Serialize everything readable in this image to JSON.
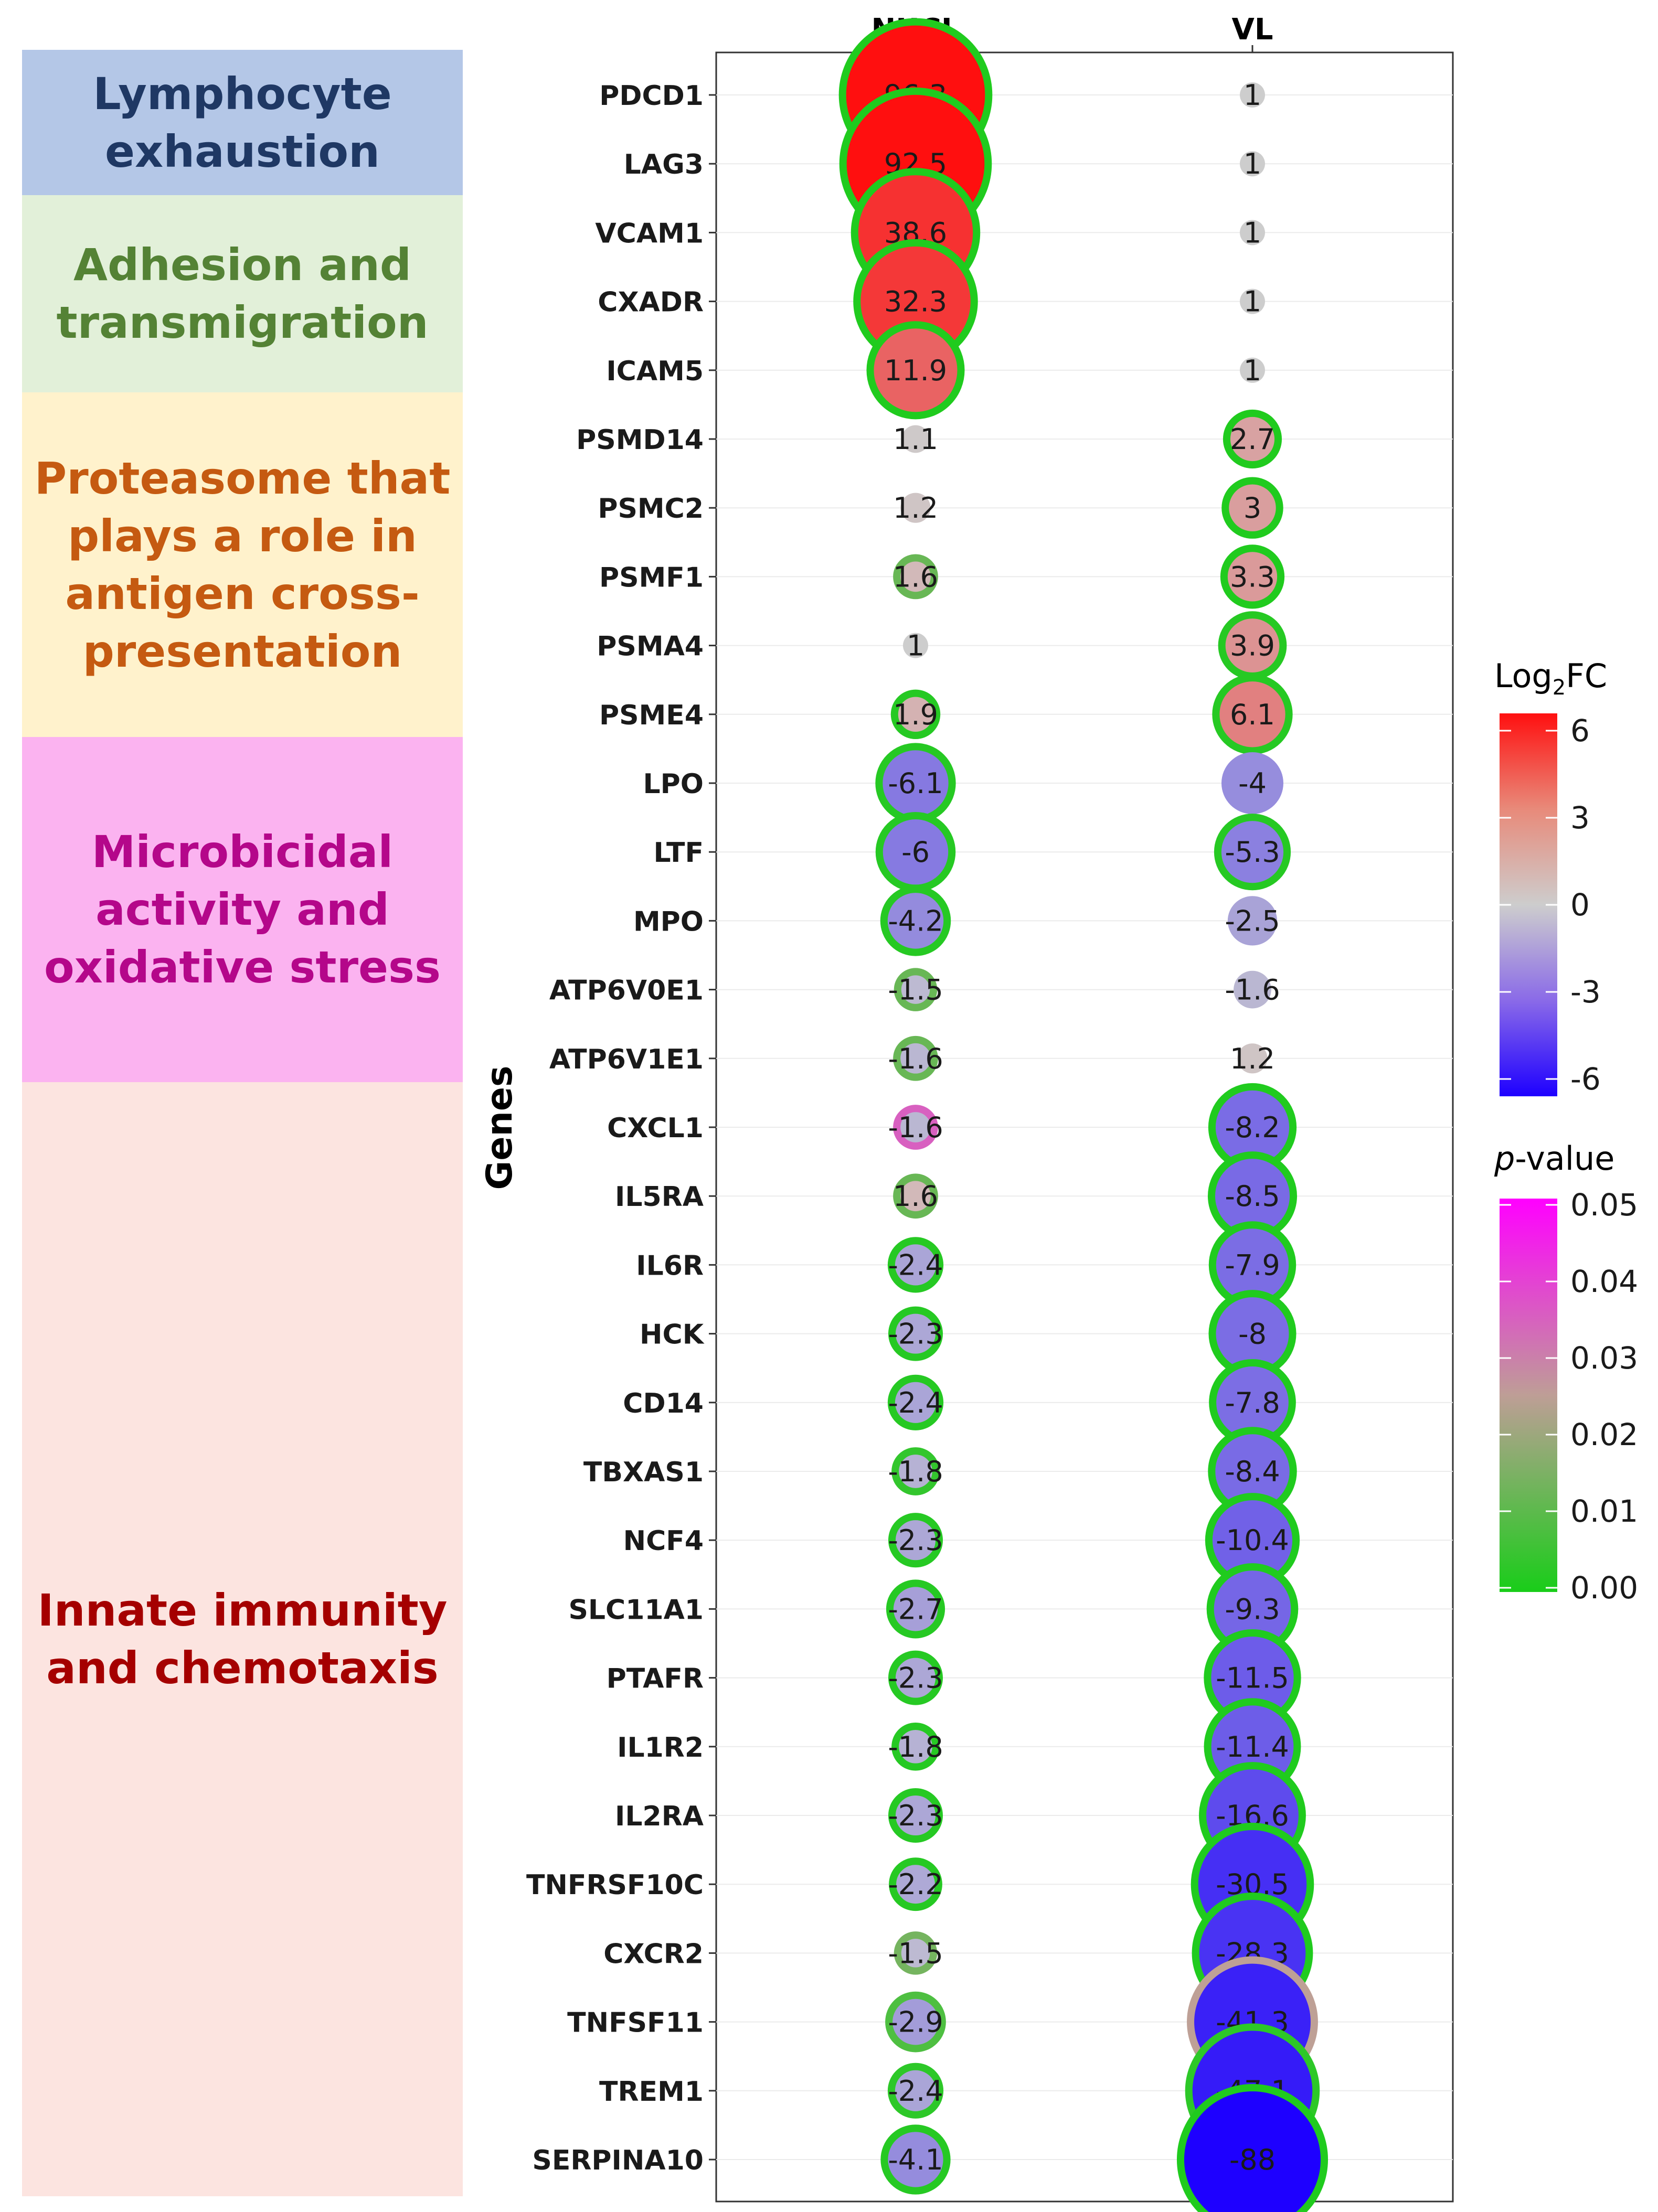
{
  "categories": [
    {
      "label": "Lymphocyte exhaustion",
      "bg": "#b4c7e7",
      "color": "#1f3864"
    },
    {
      "label": "Adhesion and transmigration",
      "bg": "#e2f0d9",
      "color": "#548235"
    },
    {
      "label": "Proteasome that plays a role in antigen cross-presentation",
      "bg": "#fff2cc",
      "color": "#c55a11"
    },
    {
      "label": "Microbicidal activity and oxidative stress",
      "bg": "#fbb3f0",
      "color": "#b4078a"
    },
    {
      "label": "Innate immunity and chemotaxis",
      "bg": "#fce4e0",
      "color": "#a50000"
    }
  ],
  "chart_data": {
    "type": "bubble",
    "ylabel": "Genes",
    "columns": [
      "NUCL",
      "VL"
    ],
    "genes": [
      "PDCD1",
      "LAG3",
      "VCAM1",
      "CXADR",
      "ICAM5",
      "PSMD14",
      "PSMC2",
      "PSMF1",
      "PSMA4",
      "PSME4",
      "LPO",
      "LTF",
      "MPO",
      "ATP6V0E1",
      "ATP6V1E1",
      "CXCL1",
      "IL5RA",
      "IL6R",
      "HCK",
      "CD14",
      "TBXAS1",
      "NCF4",
      "SLC11A1",
      "PTAFR",
      "IL1R2",
      "IL2RA",
      "TNFRSF10C",
      "CXCR2",
      "TNFSF11",
      "TREM1",
      "SERPINA10"
    ],
    "fold_change": {
      "NUCL": [
        "96.3",
        "92.5",
        "38.6",
        "32.3",
        "11.9",
        "1.1",
        "1.2",
        "1.6",
        "1",
        "1.9",
        "-6.1",
        "-6",
        "-4.2",
        "-1.5",
        "-1.6",
        "-1.6",
        "1.6",
        "-2.4",
        "-2.3",
        "-2.4",
        "-1.8",
        "-2.3",
        "-2.7",
        "-2.3",
        "-1.8",
        "-2.3",
        "-2.2",
        "-1.5",
        "-2.9",
        "-2.4",
        "-4.1"
      ],
      "VL": [
        "1",
        "1",
        "1",
        "1",
        "1",
        "2.7",
        "3",
        "3.3",
        "3.9",
        "6.1",
        "-4",
        "-5.3",
        "-2.5",
        "-1.6",
        "1.2",
        "-8.2",
        "-8.5",
        "-7.9",
        "-8",
        "-7.8",
        "-8.4",
        "-10.4",
        "-9.3",
        "-11.5",
        "-11.4",
        "-16.6",
        "-30.5",
        "-28.3",
        "-41.3",
        "-47.1",
        "-88"
      ]
    },
    "p_value": {
      "NUCL": [
        0.001,
        0.001,
        0.001,
        0.001,
        0.001,
        null,
        null,
        0.012,
        null,
        0.002,
        0.002,
        0.002,
        0.002,
        0.012,
        0.012,
        0.035,
        0.012,
        0.002,
        0.002,
        0.002,
        0.004,
        0.002,
        0.002,
        0.002,
        0.002,
        0.002,
        0.002,
        0.014,
        0.008,
        0.003,
        0.002
      ],
      "VL": [
        null,
        null,
        null,
        null,
        null,
        0.001,
        0.001,
        0.001,
        0.002,
        0.002,
        null,
        0.002,
        null,
        null,
        null,
        0.001,
        0.001,
        0.001,
        0.001,
        0.001,
        0.001,
        0.001,
        0.001,
        0.001,
        0.001,
        0.001,
        0.001,
        0.001,
        0.025,
        0.003,
        0.001
      ]
    },
    "legend_fc": {
      "title_main": "Log",
      "title_sub": "2",
      "title_end": "FC",
      "ticks": [
        "6",
        "3",
        "0",
        "-3",
        "-6"
      ],
      "range": [
        -6,
        6
      ]
    },
    "legend_p": {
      "title_italic": "p",
      "title_rest": "-value",
      "ticks": [
        "0.05",
        "0.04",
        "0.03",
        "0.02",
        "0.01",
        "0.00"
      ],
      "range": [
        0,
        0.05
      ]
    }
  }
}
